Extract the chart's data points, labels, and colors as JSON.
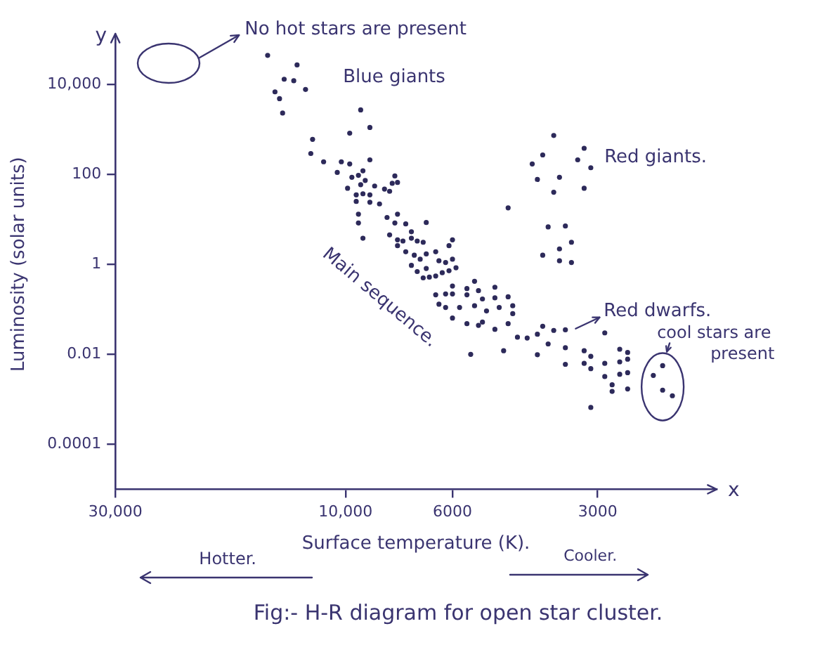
{
  "chart_data": {
    "type": "scatter",
    "xlabel": "Surface temperature (K).",
    "ylabel": "Luminosity (solar units)",
    "log": "xy",
    "xlim": [
      30000,
      1700
    ],
    "ylim": [
      1e-05,
      100000
    ],
    "xticks": [
      {
        "value": 30000,
        "label": "30,000"
      },
      {
        "value": 10000,
        "label": "10,000"
      },
      6000,
      3000
    ],
    "yticks": [
      {
        "value": 10000,
        "label": "10,000"
      },
      100,
      1,
      0.01,
      0.0001
    ],
    "marker": "circle",
    "color": "#2d2a5a",
    "x": [
      14500,
      12600,
      13400,
      12800,
      14000,
      12100,
      13700,
      13500,
      9300,
      9800,
      8900,
      11700,
      11800,
      11100,
      10200,
      9800,
      10400,
      9700,
      9400,
      9200,
      8900,
      9100,
      9900,
      9300,
      9500,
      8700,
      9200,
      8900,
      7900,
      8000,
      7800,
      8300,
      8100,
      8900,
      9500,
      8500,
      9400,
      9400,
      8200,
      7800,
      7900,
      7500,
      6800,
      7300,
      9200,
      8100,
      7800,
      7800,
      7600,
      7300,
      7100,
      6900,
      7500,
      7200,
      7000,
      6800,
      6500,
      6100,
      6000,
      6400,
      6200,
      6000,
      7300,
      7100,
      6800,
      6900,
      6700,
      6500,
      6300,
      6100,
      5900,
      5400,
      6000,
      5600,
      6500,
      6200,
      6000,
      5600,
      6400,
      6200,
      5800,
      5400,
      6000,
      5600,
      5300,
      5500,
      5300,
      4900,
      4900,
      4600,
      5200,
      5100,
      4800,
      4500,
      4500,
      5200,
      4900,
      4600,
      4700,
      4400,
      4200,
      4000,
      3900,
      3700,
      3500,
      4000,
      3800,
      3500,
      3500,
      2900,
      3200,
      3100,
      3200,
      3100,
      2900,
      2700,
      2700,
      2600,
      2600,
      2700,
      2600,
      2600,
      2800,
      2800,
      2900,
      3100,
      2300,
      2200,
      2200,
      2100,
      3700,
      3200,
      3900,
      4100,
      3300,
      3100,
      4000,
      3600,
      3700,
      3200,
      4600,
      3800,
      3500,
      3400,
      3900,
      3600,
      3600,
      3400
    ],
    "values": [
      44000,
      27000,
      13000,
      12000,
      6800,
      7700,
      4800,
      2300,
      2700,
      820,
      1100,
      600,
      290,
      190,
      190,
      170,
      110,
      86,
      95,
      120,
      210,
      73,
      49,
      59,
      35,
      55,
      37,
      35,
      92,
      63,
      66,
      47,
      42,
      24,
      25,
      22,
      13,
      8.3,
      11,
      13,
      8.3,
      7.9,
      8.5,
      5.3,
      3.8,
      4.5,
      3.5,
      2.6,
      3.3,
      3.8,
      3.3,
      3.1,
      1.9,
      1.6,
      1.3,
      1.7,
      1.9,
      2.6,
      3.5,
      1.2,
      1.1,
      1.3,
      0.95,
      0.69,
      0.81,
      0.5,
      0.52,
      0.55,
      0.65,
      0.72,
      0.84,
      0.42,
      0.33,
      0.29,
      0.21,
      0.22,
      0.22,
      0.21,
      0.13,
      0.11,
      0.11,
      0.12,
      0.064,
      0.048,
      0.044,
      0.01,
      0.26,
      0.31,
      0.18,
      0.19,
      0.17,
      0.092,
      0.11,
      0.12,
      0.08,
      0.052,
      0.036,
      0.048,
      0.012,
      0.024,
      0.023,
      0.028,
      0.042,
      0.034,
      0.035,
      0.0098,
      0.017,
      0.014,
      0.006,
      0.03,
      0.012,
      0.009,
      0.0063,
      0.0048,
      0.0063,
      0.0068,
      0.013,
      0.011,
      0.0078,
      0.0036,
      0.0039,
      0.0017,
      0.0021,
      0.0015,
      0.0032,
      0.00066,
      0.0034,
      0.0056,
      0.0016,
      0.0012,
      730,
      380,
      270,
      170,
      210,
      140,
      77,
      86,
      40,
      49,
      18,
      6.8,
      7.1,
      3.1,
      1.6,
      2.2,
      1.2,
      1.1
    ],
    "annotations": [
      "No hot stars are present",
      "Blue giants",
      "Red giants.",
      "Main sequence.",
      {
        "text": "Red dwarfs.",
        "x": 3400,
        "y": 0.03
      },
      {
        "text": "cool stars are present",
        "x": 2200,
        "y": 0.0019
      },
      "y",
      "x",
      "Hotter.",
      "Cooler.",
      "Fig:- H-R diagram for open star cluster."
    ]
  }
}
